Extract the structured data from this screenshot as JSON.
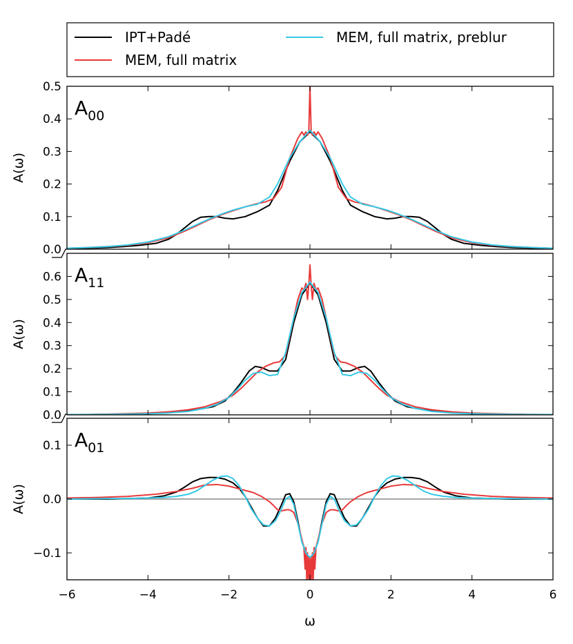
{
  "legend": {
    "entries": [
      {
        "label": "IPT+Padé",
        "color": "#000000"
      },
      {
        "label": "MEM, full matrix",
        "color": "#e8393a"
      },
      {
        "label": "MEM, full matrix, preblur",
        "color": "#35c9e6"
      }
    ]
  },
  "xlabel": "ω",
  "chart_data": {
    "type": "line",
    "x_range": [
      -6,
      6
    ],
    "x_ticks": [
      "−6",
      "−4",
      "−2",
      "0",
      "2",
      "4",
      "6"
    ],
    "x_tick_values": [
      -6,
      -4,
      -2,
      0,
      2,
      4,
      6
    ],
    "panels": [
      {
        "label_main": "A",
        "label_sub": "00",
        "ylabel": "A(ω)",
        "ylim": [
          0,
          0.5
        ],
        "y_ticks": [
          "0.0",
          "0.1",
          "0.2",
          "0.3",
          "0.4",
          "0.5"
        ],
        "y_tick_values": [
          0,
          0.1,
          0.2,
          0.3,
          0.4,
          0.5
        ],
        "zero_line": false,
        "series": [
          {
            "name": "IPT+Padé",
            "color": "#000000",
            "x": [
              0,
              0.25,
              0.5,
              0.8,
              1.0,
              1.3,
              1.6,
              1.9,
              2.1,
              2.3,
              2.5,
              2.7,
              2.9,
              3.1,
              3.3,
              3.5,
              3.8,
              4.2,
              4.6,
              5.0,
              5.5,
              6.0
            ],
            "y": [
              0.36,
              0.33,
              0.27,
              0.18,
              0.135,
              0.115,
              0.1,
              0.093,
              0.095,
              0.1,
              0.1,
              0.098,
              0.085,
              0.065,
              0.045,
              0.03,
              0.018,
              0.012,
              0.008,
              0.005,
              0.003,
              0.002
            ]
          },
          {
            "name": "MEM, full matrix",
            "color": "#e8393a",
            "x": [
              0,
              0.03,
              0.06,
              0.1,
              0.15,
              0.2,
              0.3,
              0.5,
              0.7,
              0.9,
              1.1,
              1.3,
              1.6,
              1.9,
              2.2,
              2.5,
              2.8,
              3.1,
              3.5,
              4.0,
              4.5,
              5.0,
              5.5,
              6.0
            ],
            "y": [
              0.5,
              0.36,
              0.35,
              0.36,
              0.35,
              0.36,
              0.34,
              0.28,
              0.19,
              0.155,
              0.145,
              0.14,
              0.13,
              0.118,
              0.105,
              0.09,
              0.072,
              0.055,
              0.035,
              0.02,
              0.012,
              0.008,
              0.005,
              0.003
            ]
          },
          {
            "name": "MEM, full matrix, preblur",
            "color": "#35c9e6",
            "x": [
              0,
              0.25,
              0.5,
              0.8,
              1.0,
              1.3,
              1.6,
              1.9,
              2.2,
              2.5,
              2.8,
              3.1,
              3.5,
              4.0,
              4.5,
              5.0,
              5.5,
              6.0
            ],
            "y": [
              0.365,
              0.33,
              0.28,
              0.2,
              0.16,
              0.138,
              0.13,
              0.12,
              0.107,
              0.092,
              0.075,
              0.058,
              0.038,
              0.022,
              0.013,
              0.008,
              0.005,
              0.003
            ]
          }
        ]
      },
      {
        "label_main": "A",
        "label_sub": "11",
        "ylabel": "A(ω)",
        "ylim": [
          0,
          0.7
        ],
        "y_ticks": [
          "0.0",
          "0.1",
          "0.2",
          "0.3",
          "0.4",
          "0.5",
          "0.6"
        ],
        "y_tick_values": [
          0,
          0.1,
          0.2,
          0.3,
          0.4,
          0.5,
          0.6
        ],
        "zero_line": false,
        "series": [
          {
            "name": "IPT+Padé",
            "color": "#000000",
            "x": [
              0,
              0.2,
              0.4,
              0.6,
              0.8,
              1.0,
              1.2,
              1.35,
              1.5,
              1.7,
              1.9,
              2.1,
              2.4,
              2.8,
              3.2,
              3.6,
              4.0,
              5.0,
              6.0
            ],
            "y": [
              0.57,
              0.52,
              0.4,
              0.24,
              0.19,
              0.19,
              0.205,
              0.21,
              0.19,
              0.14,
              0.095,
              0.06,
              0.035,
              0.022,
              0.014,
              0.009,
              0.005,
              0.002,
              0.001
            ]
          },
          {
            "name": "MEM, full matrix",
            "color": "#e8393a",
            "x": [
              0,
              0.03,
              0.06,
              0.1,
              0.15,
              0.2,
              0.3,
              0.45,
              0.6,
              0.75,
              0.9,
              1.1,
              1.3,
              1.5,
              1.7,
              1.9,
              2.2,
              2.6,
              3.0,
              3.5,
              4.0,
              5.0,
              6.0
            ],
            "y": [
              0.65,
              0.56,
              0.5,
              0.57,
              0.54,
              0.55,
              0.5,
              0.38,
              0.26,
              0.23,
              0.225,
              0.21,
              0.185,
              0.15,
              0.115,
              0.085,
              0.058,
              0.035,
              0.022,
              0.013,
              0.008,
              0.003,
              0.001
            ]
          },
          {
            "name": "MEM, full matrix, preblur",
            "color": "#35c9e6",
            "x": [
              0,
              0.2,
              0.4,
              0.6,
              0.8,
              1.0,
              1.2,
              1.4,
              1.6,
              1.8,
              2.0,
              2.3,
              2.6,
              3.0,
              3.5,
              4.0,
              5.0,
              6.0
            ],
            "y": [
              0.575,
              0.53,
              0.42,
              0.27,
              0.175,
              0.17,
              0.185,
              0.18,
              0.15,
              0.11,
              0.075,
              0.045,
              0.028,
              0.015,
              0.008,
              0.005,
              0.002,
              0.001
            ]
          }
        ]
      },
      {
        "label_main": "A",
        "label_sub": "01",
        "ylabel": "A(ω)",
        "ylim": [
          -0.15,
          0.15
        ],
        "y_ticks": [
          "−0.1",
          "0.0",
          "0.1"
        ],
        "y_tick_values": [
          -0.1,
          0,
          0.1
        ],
        "zero_line": true,
        "series": [
          {
            "name": "IPT+Padé",
            "color": "#000000",
            "x": [
              0,
              0.05,
              0.1,
              0.2,
              0.3,
              0.4,
              0.5,
              0.6,
              0.7,
              0.85,
              1.0,
              1.15,
              1.3,
              1.45,
              1.6,
              1.75,
              1.9,
              2.1,
              2.3,
              2.5,
              2.7,
              2.9,
              3.1,
              3.3,
              3.6,
              4.0,
              4.5,
              5.0,
              6.0
            ],
            "y": [
              -0.108,
              -0.106,
              -0.1,
              -0.078,
              -0.04,
              -0.005,
              0.01,
              0.008,
              -0.01,
              -0.035,
              -0.05,
              -0.05,
              -0.035,
              -0.015,
              0.005,
              0.02,
              0.03,
              0.037,
              0.04,
              0.04,
              0.038,
              0.032,
              0.022,
              0.013,
              0.006,
              0.002,
              0.001,
              0.0,
              0.0
            ]
          },
          {
            "name": "MEM, full matrix",
            "color": "#e8393a",
            "x": [
              0,
              0.02,
              0.04,
              0.06,
              0.08,
              0.1,
              0.12,
              0.15,
              0.2,
              0.3,
              0.4,
              0.5,
              0.6,
              0.7,
              0.8,
              0.9,
              1.0,
              1.2,
              1.4,
              1.6,
              1.8,
              2.0,
              2.3,
              2.6,
              2.9,
              3.3,
              3.8,
              4.5,
              5.2,
              6.0
            ],
            "y": [
              -0.15,
              -0.11,
              -0.15,
              -0.1,
              -0.15,
              -0.09,
              -0.13,
              -0.09,
              -0.075,
              -0.045,
              -0.025,
              -0.02,
              -0.02,
              -0.022,
              -0.02,
              -0.012,
              -0.005,
              0.005,
              0.012,
              0.016,
              0.02,
              0.024,
              0.027,
              0.026,
              0.02,
              0.014,
              0.009,
              0.005,
              0.003,
              0.002
            ]
          },
          {
            "name": "MEM, full matrix, preblur",
            "color": "#35c9e6",
            "x": [
              0,
              0.05,
              0.1,
              0.2,
              0.3,
              0.4,
              0.5,
              0.6,
              0.7,
              0.85,
              1.0,
              1.15,
              1.3,
              1.45,
              1.6,
              1.75,
              1.9,
              2.05,
              2.2,
              2.4,
              2.6,
              2.8,
              3.0,
              3.3,
              3.6,
              4.0,
              4.5,
              5.0,
              6.0
            ],
            "y": [
              -0.108,
              -0.105,
              -0.1,
              -0.08,
              -0.045,
              -0.01,
              0.005,
              0.0,
              -0.018,
              -0.04,
              -0.05,
              -0.048,
              -0.035,
              -0.018,
              0.005,
              0.025,
              0.038,
              0.043,
              0.042,
              0.035,
              0.025,
              0.015,
              0.009,
              0.005,
              0.003,
              0.002,
              0.001,
              0.001,
              0.0
            ]
          }
        ]
      }
    ]
  }
}
